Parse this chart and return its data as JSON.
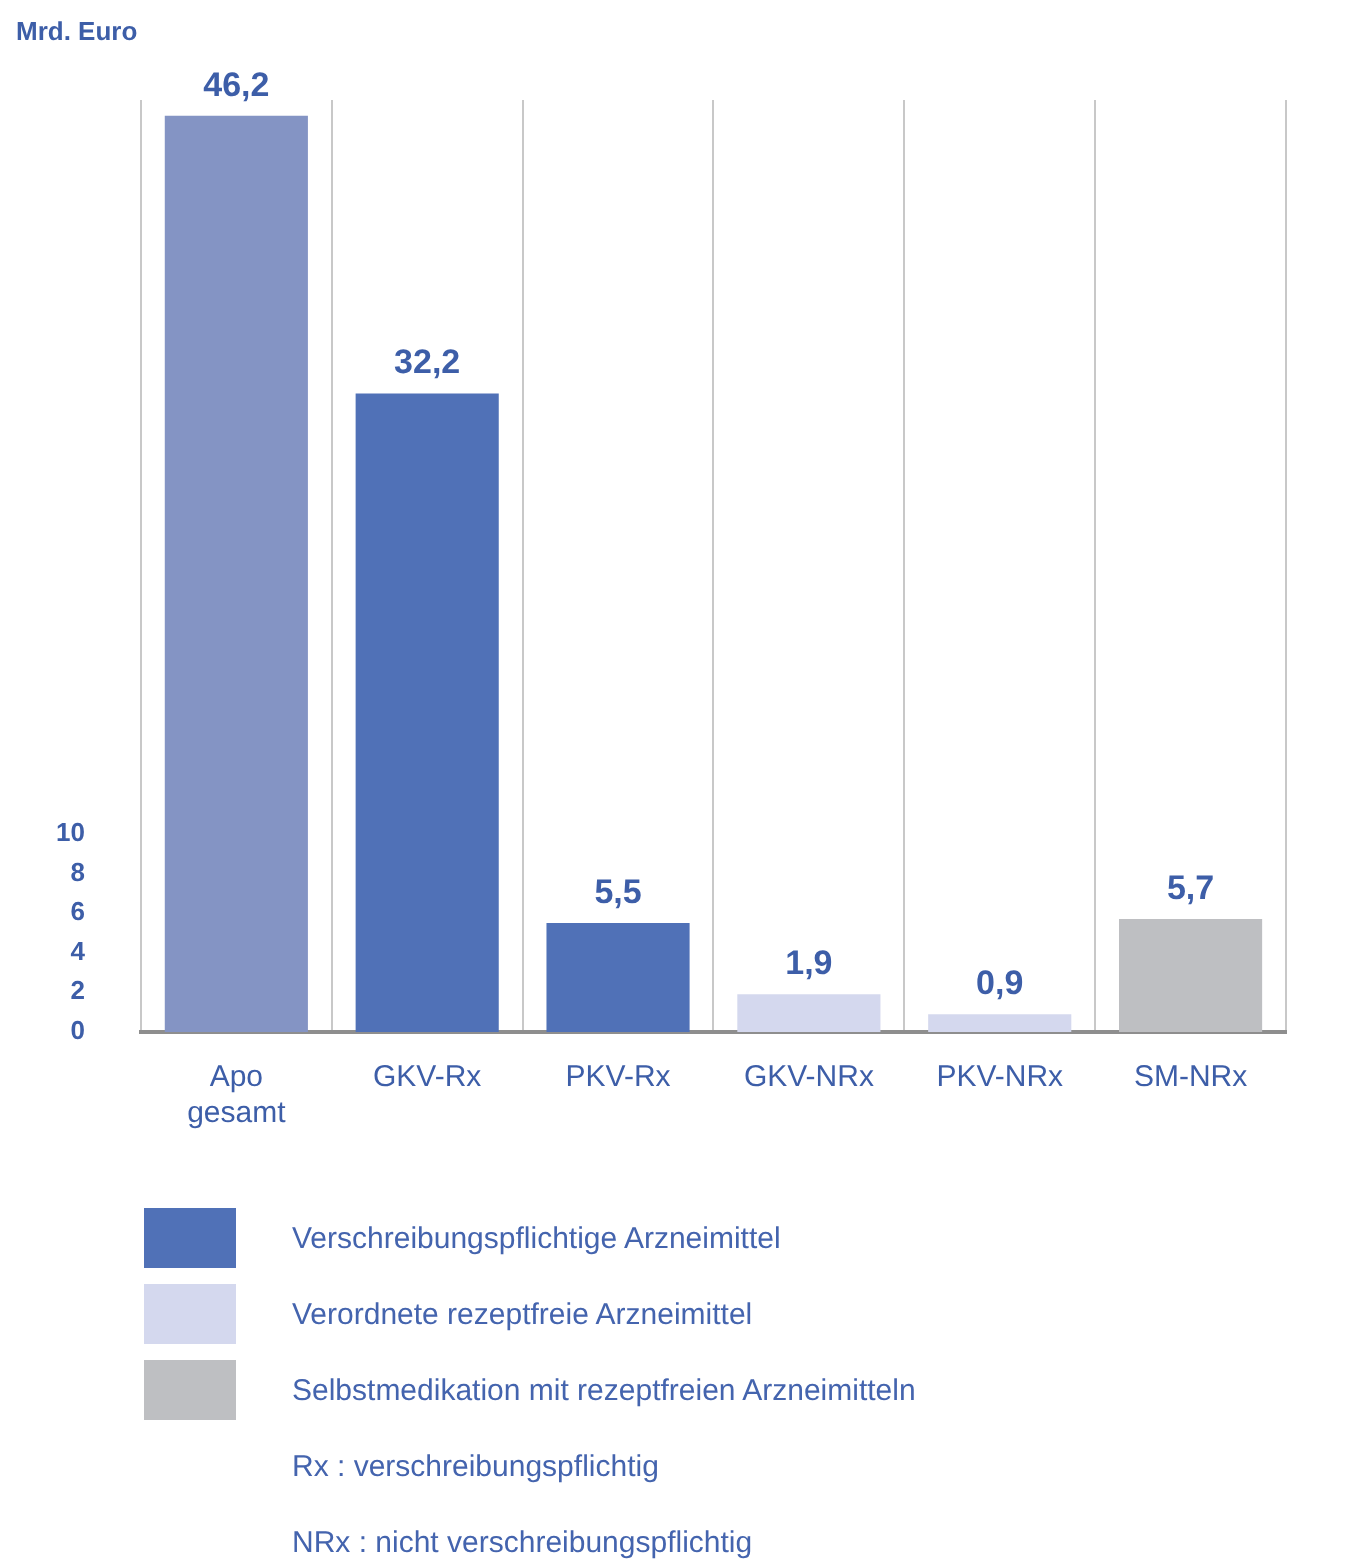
{
  "chart_data": {
    "type": "bar",
    "ylabel": "Mrd. Euro",
    "categories": [
      "Apo\ngesamt",
      "GKV-Rx",
      "PKV-Rx",
      "GKV-NRx",
      "PKV-NRx",
      "SM-NRx"
    ],
    "stacked": true,
    "ylim": [
      0,
      47
    ],
    "yticks": [
      0,
      2,
      4,
      6,
      8,
      10
    ],
    "grid": "x",
    "legend": "bottom",
    "series": [
      {
        "color": "#8494c4",
        "values": [
          46.2,
          null,
          null,
          null,
          null,
          null
        ],
        "value_labels": [
          "46,2",
          null,
          null,
          null,
          null,
          null
        ]
      },
      {
        "name": "Verschreibungspflichtige Arzneimittel",
        "color": "#5071b7",
        "values": [
          null,
          32.2,
          5.5,
          null,
          null,
          null
        ],
        "value_labels": [
          null,
          "32,2",
          "5,5",
          null,
          null,
          null
        ]
      },
      {
        "name": "Verordnete rezeptfreie Arzneimittel",
        "color": "#d4d8ee",
        "values": [
          null,
          null,
          null,
          1.9,
          0.9,
          null
        ],
        "value_labels": [
          null,
          null,
          null,
          "1,9",
          "0,9",
          null
        ]
      },
      {
        "name": "Selbstmedikation mit rezeptfreien Arzneimitteln",
        "color": "#bebfc2",
        "values": [
          null,
          null,
          null,
          null,
          null,
          5.7
        ],
        "value_labels": [
          null,
          null,
          null,
          null,
          null,
          "5,7"
        ]
      }
    ],
    "annotations": [
      "Rx :   verschreibungspflichtig",
      "NRx : nicht verschreibungspflichtig"
    ]
  }
}
